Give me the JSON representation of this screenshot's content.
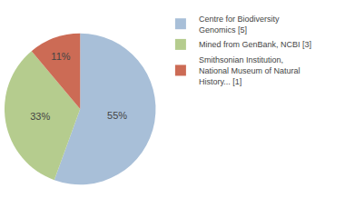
{
  "chart_data": {
    "type": "pie",
    "categories": [
      "Centre for Biodiversity\nGenomics [5]",
      "Mined from GenBank, NCBI [3]",
      "Smithsonian Institution,\nNational Museum of Natural\nHistory... [1]"
    ],
    "values": [
      55,
      33,
      11
    ],
    "value_labels": [
      "55%",
      "33%",
      "11%"
    ],
    "colors": [
      "#a8bfd8",
      "#b5cc8e",
      "#cc6b55"
    ],
    "data_labels": true,
    "legend": "upper right"
  }
}
